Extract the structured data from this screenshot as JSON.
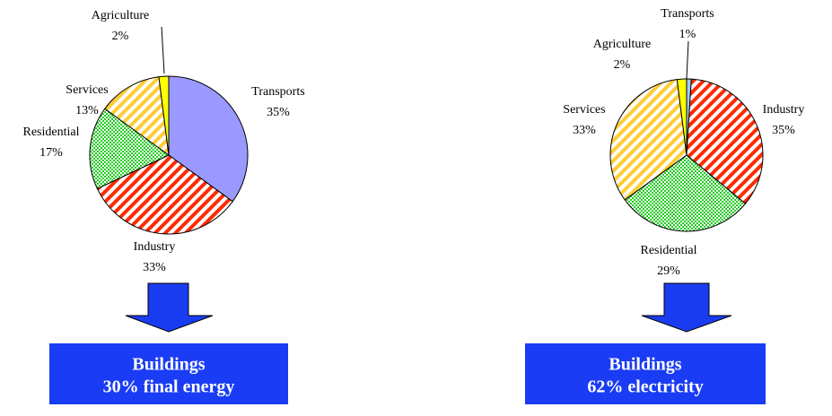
{
  "chart_data": [
    {
      "type": "pie",
      "categories": [
        "Transports",
        "Industry",
        "Residential",
        "Services",
        "Agriculture"
      ],
      "values": [
        35,
        33,
        17,
        13,
        2
      ],
      "value_labels": [
        "35%",
        "33%",
        "17%",
        "13%",
        "2%"
      ],
      "colors": [
        "#9999ff",
        "#ff2a00",
        "#22cc22",
        "#ffcc33",
        "#ffff00"
      ],
      "patterns": [
        "solid",
        "stripes",
        "checks",
        "stripes",
        "solid"
      ],
      "summary": [
        "Buildings",
        "30% final energy"
      ]
    },
    {
      "type": "pie",
      "categories": [
        "Transports",
        "Industry",
        "Residential",
        "Services",
        "Agriculture"
      ],
      "values": [
        1,
        35,
        29,
        33,
        2
      ],
      "value_labels": [
        "1%",
        "35%",
        "29%",
        "33%",
        "2%"
      ],
      "colors": [
        "#99ccff",
        "#ff2a00",
        "#22cc22",
        "#ffcc33",
        "#ffff00"
      ],
      "patterns": [
        "solid",
        "stripes",
        "checks",
        "stripes",
        "solid"
      ],
      "summary": [
        "Buildings",
        "62% electricity"
      ]
    }
  ]
}
